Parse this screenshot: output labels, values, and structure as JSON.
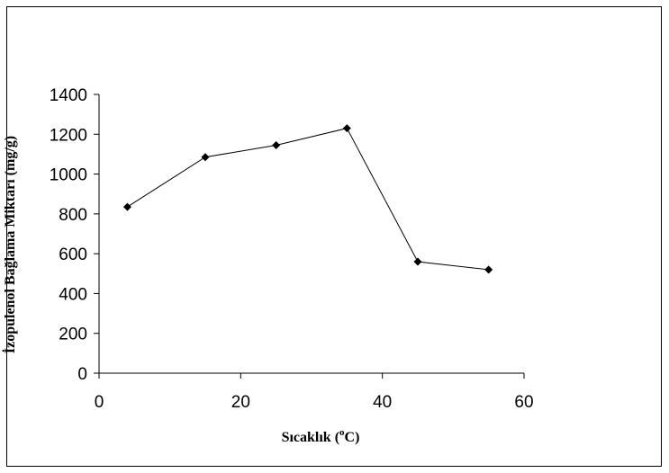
{
  "chart_data": {
    "type": "line",
    "xlabel": "Sıcaklık (",
    "xlabel_sup": "o",
    "xlabel_end": "C)",
    "ylabel": "İzopulenol Bağlama Miktarı (mg/g)",
    "xlim": [
      0,
      60
    ],
    "ylim": [
      0,
      1400
    ],
    "x_ticks": [
      0,
      20,
      40,
      60
    ],
    "y_ticks": [
      0,
      200,
      400,
      600,
      800,
      1000,
      1200,
      1400
    ],
    "grid": false,
    "series": [
      {
        "x": [
          4,
          15,
          25,
          35,
          45,
          55
        ],
        "y": [
          835,
          1085,
          1145,
          1230,
          560,
          520
        ],
        "marker": "diamond",
        "color": "#000000"
      }
    ]
  }
}
